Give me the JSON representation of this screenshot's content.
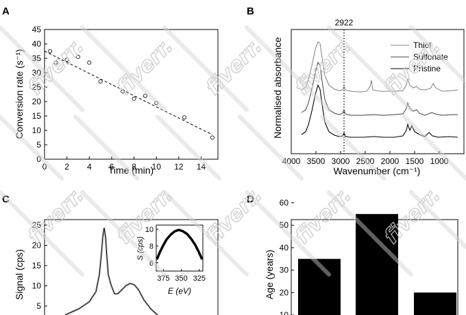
{
  "watermark": "fiverr.",
  "chart_data": [
    {
      "panel": "A",
      "type": "scatter",
      "xlabel": "Time (min)",
      "ylabel": "Conversion rate (s⁻¹)",
      "xlim": [
        0,
        15.5
      ],
      "ylim": [
        0,
        45
      ],
      "xticks": [
        0,
        2,
        4,
        6,
        8,
        10,
        12,
        14
      ],
      "yticks": [
        0,
        5,
        10,
        15,
        20,
        25,
        30,
        35,
        40,
        45
      ],
      "points": [
        {
          "x": 0.5,
          "y": 37.5
        },
        {
          "x": 1,
          "y": 33.5
        },
        {
          "x": 2,
          "y": 34.5
        },
        {
          "x": 3,
          "y": 35.5
        },
        {
          "x": 4,
          "y": 33.5
        },
        {
          "x": 5,
          "y": 27
        },
        {
          "x": 7,
          "y": 23.5
        },
        {
          "x": 8,
          "y": 21
        },
        {
          "x": 9,
          "y": 22
        },
        {
          "x": 10,
          "y": 19.5
        },
        {
          "x": 12.5,
          "y": 14.5
        },
        {
          "x": 15,
          "y": 7.5
        }
      ],
      "fit": [
        {
          "x": 0,
          "y": 37.5
        },
        {
          "x": 15,
          "y": 8.5
        }
      ]
    },
    {
      "panel": "B",
      "type": "line",
      "xlabel": "Wavenumber (cm⁻¹)",
      "ylabel": "Normalised absorbance",
      "xlim": [
        4000,
        500
      ],
      "xticks": [
        4000,
        3500,
        3000,
        2500,
        2000,
        1500,
        1000
      ],
      "annotation": {
        "label": "2922",
        "x": 2922
      },
      "series": [
        {
          "name": "Thiol",
          "color": "#808080"
        },
        {
          "name": "Sulfonate",
          "color": "#404040"
        },
        {
          "name": "Pristine",
          "color": "#000000"
        }
      ]
    },
    {
      "panel": "C",
      "type": "line",
      "xlabel": "",
      "ylabel": "Signal (cps)",
      "yticks": [
        5,
        10,
        15,
        20,
        25
      ],
      "inset": {
        "xlabel": "E (eV)",
        "ylabel": "S (cps)",
        "xticks": [
          375,
          350,
          325
        ],
        "yticks": [
          6,
          8,
          10
        ],
        "xlim": [
          385,
          320
        ],
        "ylim": [
          5,
          10.5
        ]
      }
    },
    {
      "panel": "D",
      "type": "bar",
      "ylabel": "Age (years)",
      "ylim": [
        0,
        65
      ],
      "yticks": [
        10,
        20,
        30,
        40,
        50,
        60
      ],
      "values": [
        35,
        55,
        20
      ],
      "color": "#000000"
    }
  ]
}
